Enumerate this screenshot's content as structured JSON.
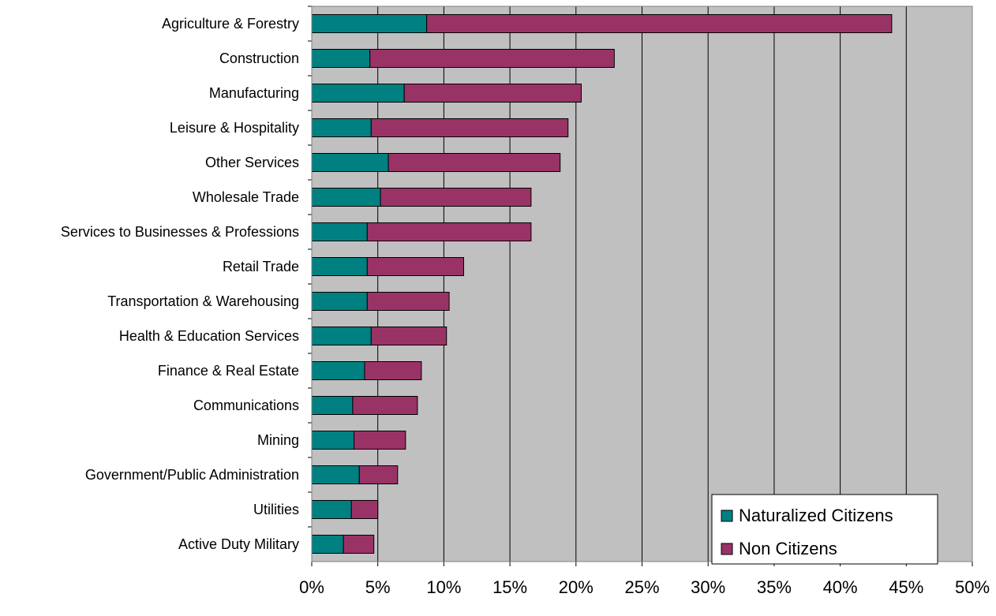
{
  "chart_data": {
    "type": "bar",
    "orientation": "horizontal",
    "stacked": true,
    "categories": [
      "Agriculture & Forestry",
      "Construction",
      "Manufacturing",
      "Leisure & Hospitality",
      "Other Services",
      "Wholesale Trade",
      "Services to Businesses & Professions",
      "Retail Trade",
      "Transportation & Warehousing",
      "Health & Education Services",
      "Finance & Real Estate",
      "Communications",
      "Mining",
      "Government/Public Administration",
      "Utilities",
      "Active Duty Military"
    ],
    "series": [
      {
        "name": "Naturalized Citizens",
        "color": "#008080",
        "values": [
          8.7,
          4.4,
          7.0,
          4.5,
          5.8,
          5.2,
          4.2,
          4.2,
          4.2,
          4.5,
          4.0,
          3.1,
          3.2,
          3.6,
          3.0,
          2.4
        ]
      },
      {
        "name": "Non Citizens",
        "color": "#993366",
        "values": [
          35.2,
          18.5,
          13.4,
          14.9,
          13.0,
          11.4,
          12.4,
          7.3,
          6.2,
          5.7,
          4.3,
          4.9,
          3.9,
          2.9,
          2.0,
          2.3
        ]
      }
    ],
    "x_ticks": [
      "0%",
      "5%",
      "10%",
      "15%",
      "20%",
      "25%",
      "30%",
      "35%",
      "40%",
      "45%",
      "50%"
    ],
    "xlim": [
      0,
      50
    ],
    "x_unit": "percent",
    "grid": "vertical",
    "plot_background": "#c0c0c0",
    "legend_position": "bottom-right",
    "title": "",
    "xlabel": "",
    "ylabel": ""
  }
}
